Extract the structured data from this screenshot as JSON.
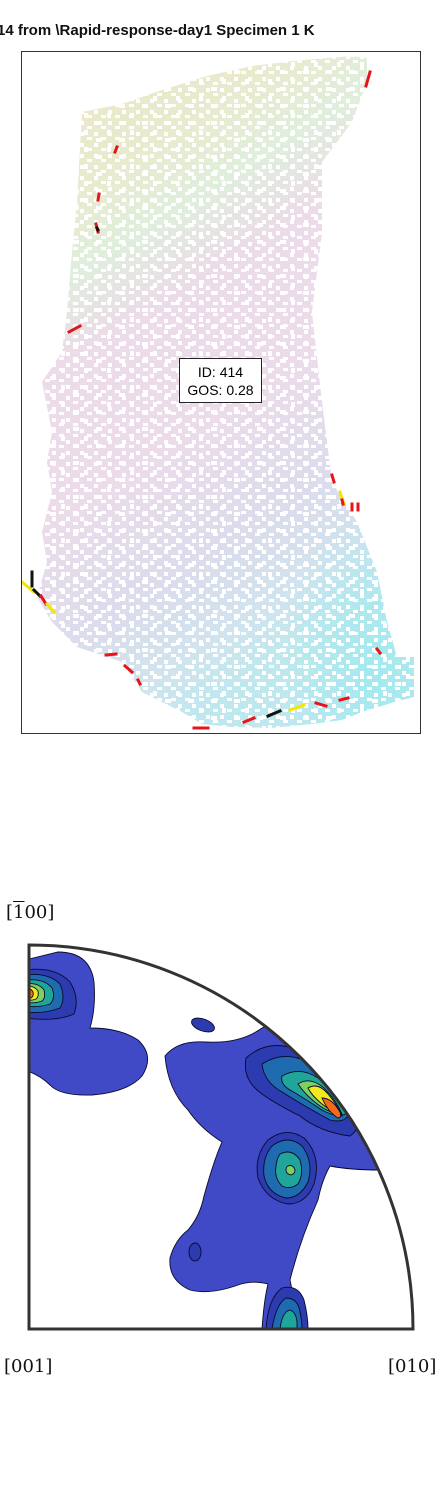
{
  "title": "14 from \\Rapid-response-day1 Specimen 1 K",
  "grain_label": {
    "id_text": "ID: 414",
    "gos_text": "GOS: 0.28"
  },
  "pole_figure": {
    "label_top_prefix": "[",
    "label_top_bar": "1",
    "label_top_suffix": "00]",
    "label_left": "[001]",
    "label_right": "[010]"
  },
  "colors": {
    "boundary_high": "#e8141c",
    "boundary_twin": "#f5e600",
    "boundary_other": "#111111",
    "contour_low": "#4049c6",
    "contour_mid": "#1fa59a",
    "contour_high": "#f1e91e",
    "contour_max": "#f36a1a"
  }
}
